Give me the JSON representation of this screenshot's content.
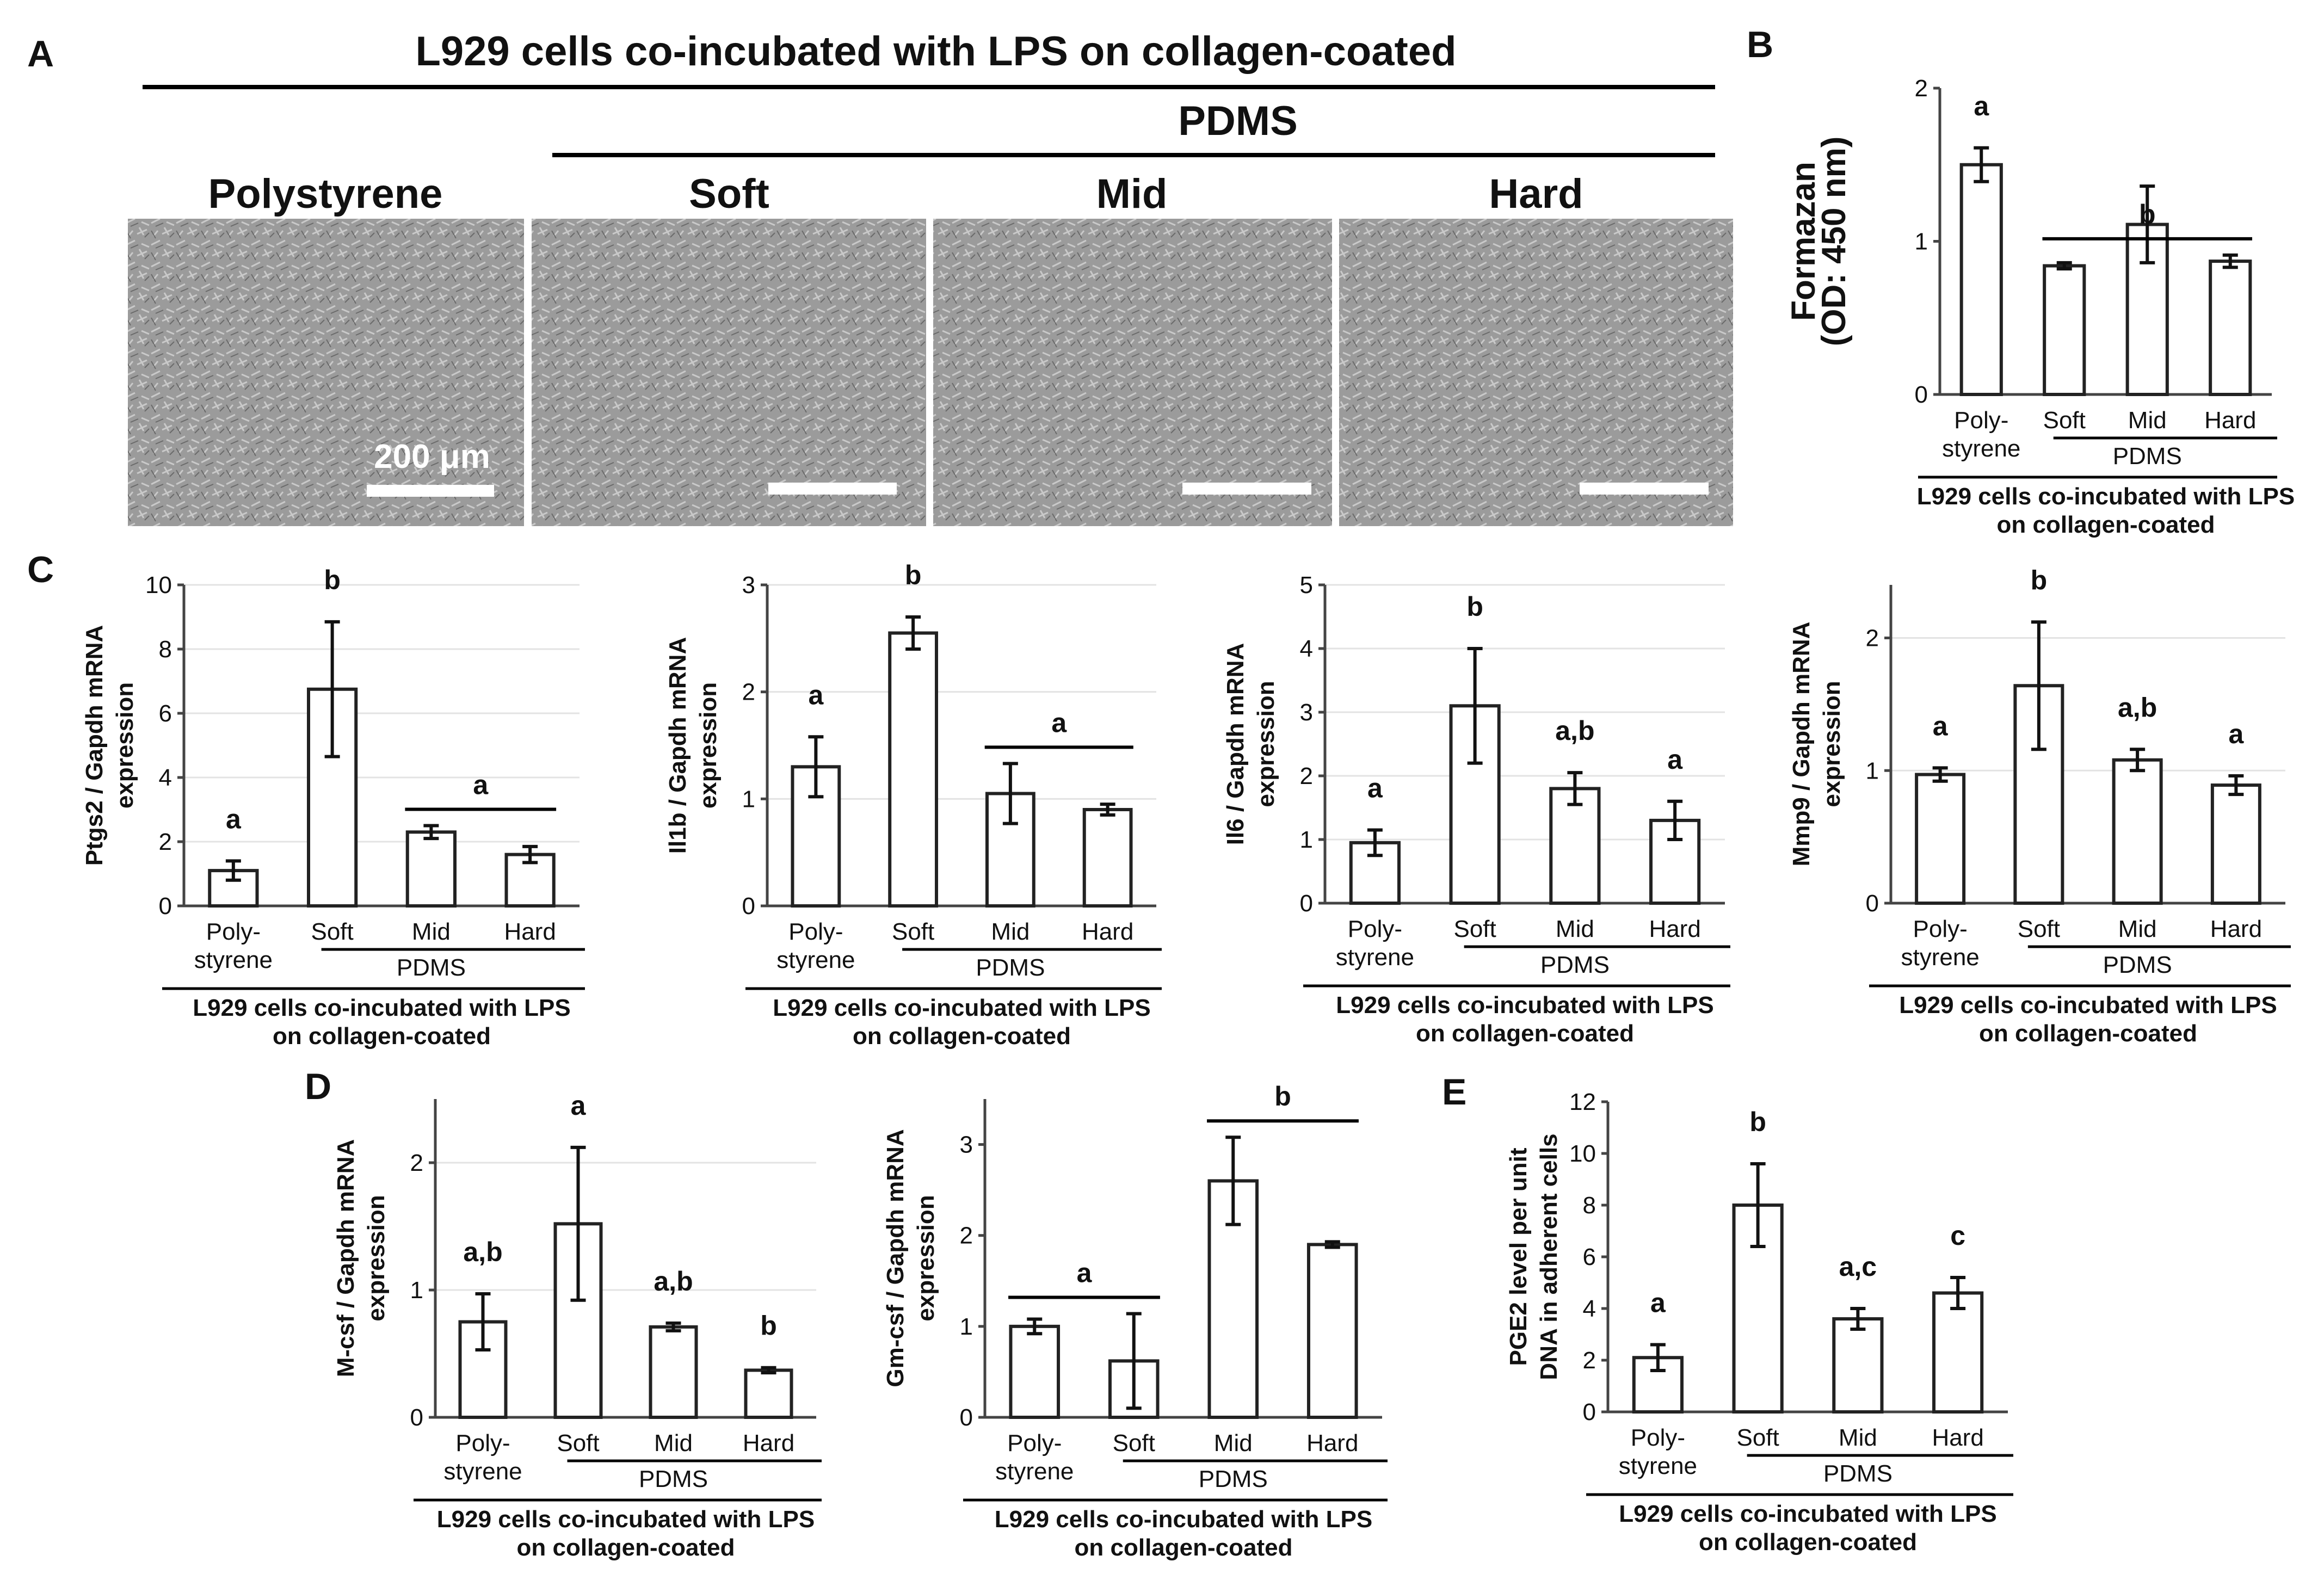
{
  "colors": {
    "bar_fill": "#ffffff",
    "bar_stroke": "#222222",
    "axis": "#444444",
    "micrograph": "#9b9b9b"
  },
  "panel_a": {
    "letter": "A",
    "title": "L929 cells co-incubated with LPS on collagen-coated",
    "pdms_label": "PDMS",
    "image_labels": [
      "Polystyrene",
      "Soft",
      "Mid",
      "Hard"
    ],
    "scale_bar_label": "200 μm"
  },
  "panel_b": {
    "letter": "B"
  },
  "panel_c": {
    "letter": "C"
  },
  "panel_d": {
    "letter": "D"
  },
  "panel_e": {
    "letter": "E"
  },
  "chart_data": [
    {
      "panel": "B",
      "type": "bar",
      "categories": [
        "Poly-\nstyrene",
        "Soft",
        "Mid",
        "Hard"
      ],
      "values": [
        1.5,
        0.84,
        1.11,
        0.87
      ],
      "errors": [
        0.11,
        0.02,
        0.25,
        0.04
      ],
      "ylabel": [
        "Formazan",
        "(OD: 450 nm)"
      ],
      "ylim": [
        0,
        2
      ],
      "yticks": [
        0,
        1,
        2
      ],
      "letters": [
        {
          "text": "a",
          "bars": [
            0
          ]
        },
        {
          "text": "b",
          "bars": [
            1,
            3
          ]
        }
      ],
      "group_label": "PDMS",
      "xlabel": [
        "L929 cells co-incubated with LPS",
        "on collagen-coated"
      ],
      "grid": false
    },
    {
      "panel": "C",
      "type": "bar",
      "categories": [
        "Poly-\nstyrene",
        "Soft",
        "Mid",
        "Hard"
      ],
      "values": [
        1.1,
        6.75,
        2.3,
        1.6
      ],
      "errors": [
        0.3,
        2.1,
        0.2,
        0.25
      ],
      "ylabel": [
        "Ptgs2 / Gapdh mRNA",
        "expression"
      ],
      "ylim": [
        0,
        10
      ],
      "yticks": [
        0,
        2,
        4,
        6,
        8,
        10
      ],
      "letters": [
        {
          "text": "a",
          "bars": [
            0
          ]
        },
        {
          "text": "b",
          "bars": [
            1
          ]
        },
        {
          "text": "a",
          "bars": [
            2,
            3
          ]
        }
      ],
      "group_label": "PDMS",
      "xlabel": [
        "L929 cells co-incubated with LPS",
        "on collagen-coated"
      ],
      "grid": true
    },
    {
      "panel": "C",
      "type": "bar",
      "categories": [
        "Poly-\nstyrene",
        "Soft",
        "Mid",
        "Hard"
      ],
      "values": [
        1.3,
        2.55,
        1.05,
        0.9
      ],
      "errors": [
        0.28,
        0.15,
        0.28,
        0.05
      ],
      "ylabel": [
        "Il1b / Gapdh mRNA",
        "expression"
      ],
      "ylim": [
        0,
        3
      ],
      "yticks": [
        0,
        1,
        2,
        3
      ],
      "letters": [
        {
          "text": "a",
          "bars": [
            0
          ]
        },
        {
          "text": "b",
          "bars": [
            1
          ]
        },
        {
          "text": "a",
          "bars": [
            2,
            3
          ]
        }
      ],
      "group_label": "PDMS",
      "xlabel": [
        "L929 cells co-incubated with LPS",
        "on collagen-coated"
      ],
      "grid": true
    },
    {
      "panel": "C",
      "type": "bar",
      "categories": [
        "Poly-\nstyrene",
        "Soft",
        "Mid",
        "Hard"
      ],
      "values": [
        0.95,
        3.1,
        1.8,
        1.3
      ],
      "errors": [
        0.2,
        0.9,
        0.25,
        0.3
      ],
      "ylabel": [
        "Il6 / Gapdh mRNA",
        "expression"
      ],
      "ylim": [
        0,
        5
      ],
      "yticks": [
        0,
        1,
        2,
        3,
        4,
        5
      ],
      "letters": [
        {
          "text": "a",
          "bars": [
            0
          ]
        },
        {
          "text": "b",
          "bars": [
            1
          ]
        },
        {
          "text": "a,b",
          "bars": [
            2
          ]
        },
        {
          "text": "a",
          "bars": [
            3
          ]
        }
      ],
      "group_label": "PDMS",
      "xlabel": [
        "L929 cells co-incubated with LPS",
        "on collagen-coated"
      ],
      "grid": true
    },
    {
      "panel": "C",
      "type": "bar",
      "categories": [
        "Poly-\nstyrene",
        "Soft",
        "Mid",
        "Hard"
      ],
      "values": [
        0.97,
        1.64,
        1.08,
        0.89
      ],
      "errors": [
        0.05,
        0.48,
        0.08,
        0.07
      ],
      "ylabel": [
        "Mmp9 / Gapdh mRNA",
        "expression"
      ],
      "ylim": [
        0,
        2.4
      ],
      "yticks": [
        0,
        1,
        2
      ],
      "letters": [
        {
          "text": "a",
          "bars": [
            0
          ]
        },
        {
          "text": "b",
          "bars": [
            1
          ]
        },
        {
          "text": "a,b",
          "bars": [
            2
          ]
        },
        {
          "text": "a",
          "bars": [
            3
          ]
        }
      ],
      "group_label": "PDMS",
      "xlabel": [
        "L929 cells co-incubated with LPS",
        "on collagen-coated"
      ],
      "grid": true
    },
    {
      "panel": "D",
      "type": "bar",
      "categories": [
        "Poly-\nstyrene",
        "Soft",
        "Mid",
        "Hard"
      ],
      "values": [
        0.75,
        1.52,
        0.71,
        0.37
      ],
      "errors": [
        0.22,
        0.6,
        0.03,
        0.02
      ],
      "ylabel": [
        "M-csf / Gapdh mRNA",
        "expression"
      ],
      "ylim": [
        0,
        2.5
      ],
      "yticks": [
        0,
        1,
        2
      ],
      "letters": [
        {
          "text": "a,b",
          "bars": [
            0
          ]
        },
        {
          "text": "a",
          "bars": [
            1
          ]
        },
        {
          "text": "a,b",
          "bars": [
            2
          ]
        },
        {
          "text": "b",
          "bars": [
            3
          ]
        }
      ],
      "group_label": "PDMS",
      "xlabel": [
        "L929 cells co-incubated with LPS",
        "on collagen-coated"
      ],
      "grid": true
    },
    {
      "panel": "D",
      "type": "bar",
      "categories": [
        "Poly-\nstyrene",
        "Soft",
        "Mid",
        "Hard"
      ],
      "values": [
        1.0,
        0.62,
        2.6,
        1.9
      ],
      "errors": [
        0.08,
        0.52,
        0.48,
        0.03
      ],
      "ylabel": [
        "Gm-csf / Gapdh mRNA",
        "expression"
      ],
      "ylim": [
        0,
        3.5
      ],
      "yticks": [
        0,
        1,
        2,
        3
      ],
      "letters": [
        {
          "text": "a",
          "bars": [
            0,
            1
          ]
        },
        {
          "text": "b",
          "bars": [
            2,
            3
          ]
        }
      ],
      "group_label": "PDMS",
      "xlabel": [
        "L929 cells co-incubated with LPS",
        "on collagen-coated"
      ],
      "grid": false
    },
    {
      "panel": "E",
      "type": "bar",
      "categories": [
        "Poly-\nstyrene",
        "Soft",
        "Mid",
        "Hard"
      ],
      "values": [
        2.1,
        8.0,
        3.6,
        4.6
      ],
      "errors": [
        0.5,
        1.6,
        0.4,
        0.6
      ],
      "ylabel": [
        "PGE2 level per unit",
        "DNA in adherent cells"
      ],
      "ylim": [
        0,
        12
      ],
      "yticks": [
        0,
        2,
        4,
        6,
        8,
        10,
        12
      ],
      "letters": [
        {
          "text": "a",
          "bars": [
            0
          ]
        },
        {
          "text": "b",
          "bars": [
            1
          ]
        },
        {
          "text": "a,c",
          "bars": [
            2
          ]
        },
        {
          "text": "c",
          "bars": [
            3
          ]
        }
      ],
      "group_label": "PDMS",
      "xlabel": [
        "L929 cells co-incubated with LPS",
        "on collagen-coated"
      ],
      "grid": false
    }
  ]
}
